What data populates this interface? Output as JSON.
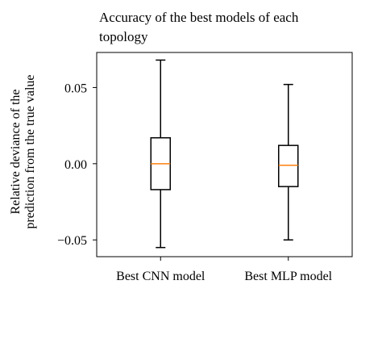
{
  "chart_data": {
    "type": "box",
    "title_lines": [
      "Accuracy of the best models of each",
      "topology"
    ],
    "ylabel_lines": [
      "Relative deviance of the",
      "prediction from the true value"
    ],
    "xlabel": "",
    "categories": [
      "Best CNN model",
      "Best MLP model"
    ],
    "boxes": [
      {
        "whisker_low": -0.055,
        "q1": -0.017,
        "median": 0.0,
        "q3": 0.017,
        "whisker_high": 0.068
      },
      {
        "whisker_low": -0.05,
        "q1": -0.015,
        "median": -0.001,
        "q3": 0.012,
        "whisker_high": 0.052
      }
    ],
    "yticks": [
      -0.05,
      0.0,
      0.05
    ],
    "ytick_labels": [
      "−0.05",
      "0.00",
      "0.05"
    ],
    "ylim": [
      -0.061,
      0.073
    ],
    "grid": false,
    "colors": {
      "box": "#000000",
      "median": "#ff7f0e"
    }
  }
}
